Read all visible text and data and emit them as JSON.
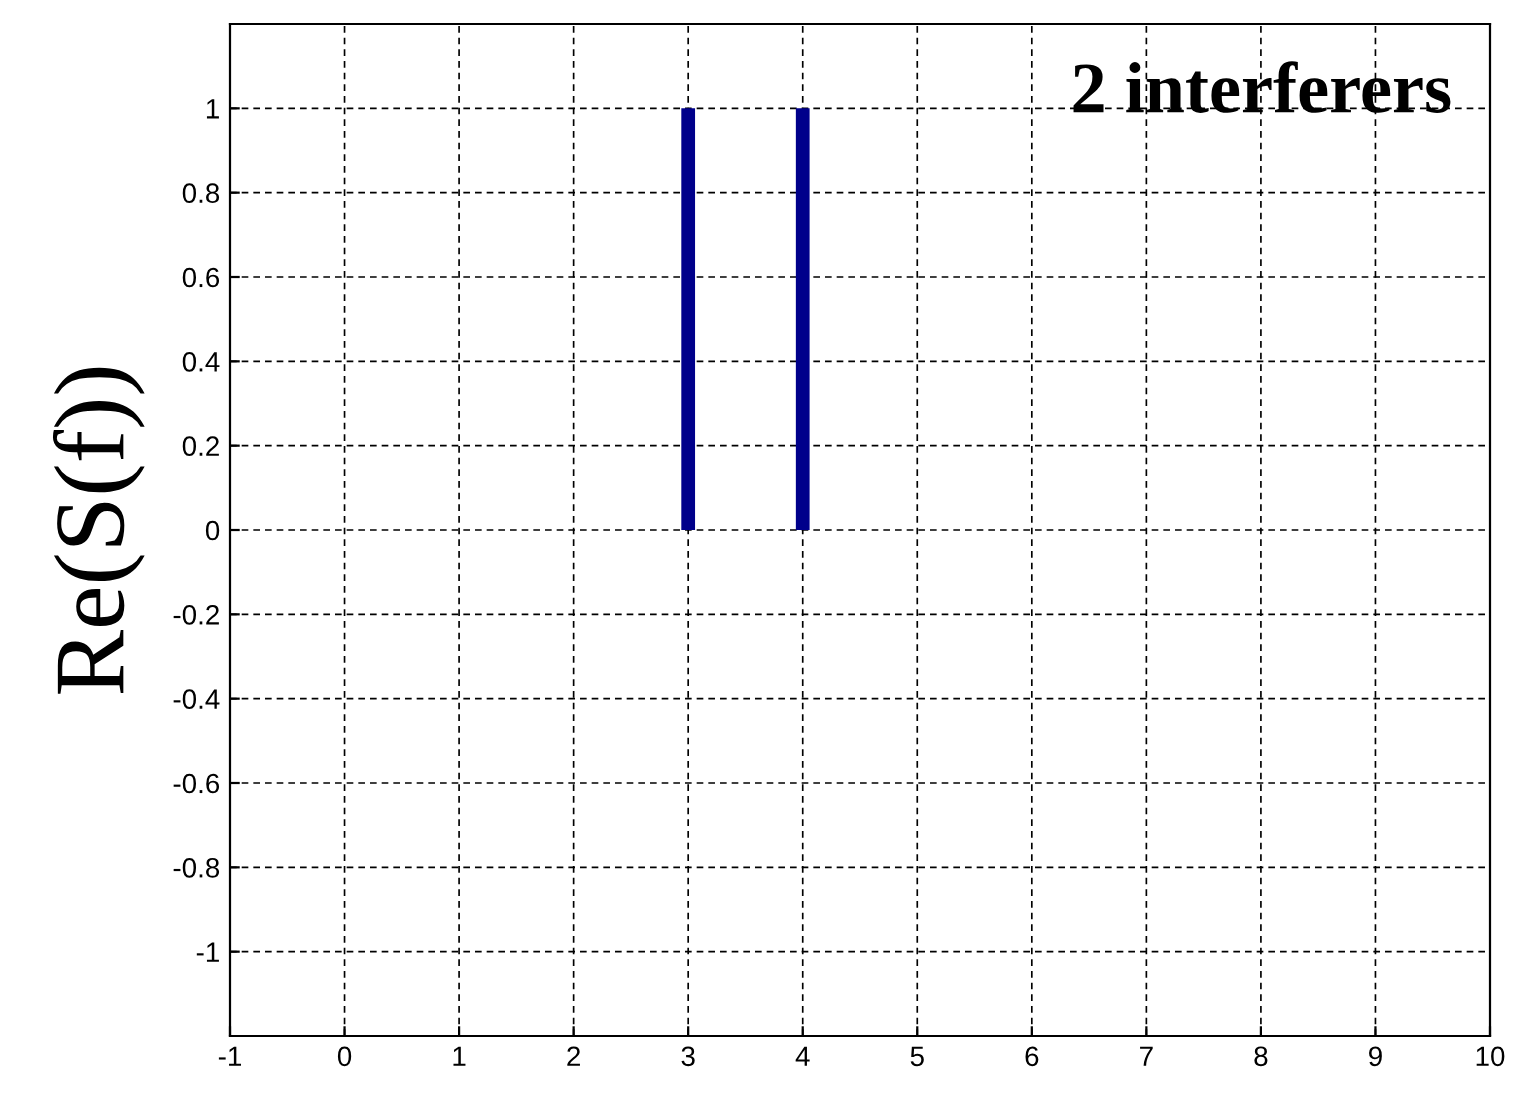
{
  "chart_data": {
    "type": "bar",
    "ylabel": "Re(S(f))",
    "annotations": [
      "2 interferers"
    ],
    "x": [
      0,
      1,
      2,
      3,
      4,
      5,
      6,
      7,
      8,
      9,
      10
    ],
    "values": [
      0,
      0,
      0,
      1,
      1,
      0,
      0,
      0,
      0,
      0,
      0
    ],
    "color": "#00008b",
    "xlim": [
      -1,
      10
    ],
    "xticks": [
      -1,
      0,
      1,
      2,
      3,
      4,
      5,
      6,
      7,
      8,
      9,
      10
    ],
    "ylim": [
      -1.2,
      1.2
    ],
    "yticks": [
      -1,
      -0.8,
      -0.6,
      -0.4,
      -0.2,
      0,
      0.2,
      0.4,
      0.6,
      0.8,
      1
    ],
    "grid": true,
    "line_style": "dashed"
  }
}
